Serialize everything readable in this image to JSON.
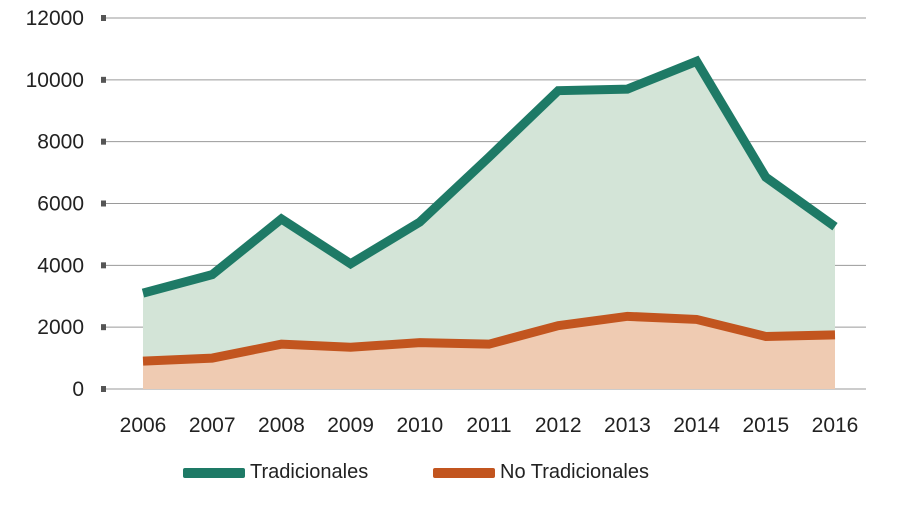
{
  "chart_data": {
    "type": "area",
    "categories": [
      "2006",
      "2007",
      "2008",
      "2009",
      "2010",
      "2011",
      "2012",
      "2013",
      "2014",
      "2015",
      "2016"
    ],
    "ylim": [
      0,
      12000
    ],
    "yticks": [
      0,
      2000,
      4000,
      6000,
      8000,
      10000,
      12000
    ],
    "ytick_labels": [
      "0",
      "2000",
      "4000",
      "6000",
      "8000",
      "10000",
      "12000"
    ],
    "grid": true,
    "legend_position": "bottom",
    "series": [
      {
        "name": "Tradicionales",
        "values": [
          3100,
          3700,
          5500,
          4050,
          5400,
          7500,
          9650,
          9700,
          10600,
          6850,
          5250
        ],
        "line_color": "#1e7a66",
        "fill_color": "#d3e4d7"
      },
      {
        "name": "No Tradicionales",
        "values": [
          900,
          1000,
          1450,
          1350,
          1500,
          1450,
          2050,
          2350,
          2250,
          1700,
          1750
        ],
        "line_color": "#c2551f",
        "fill_color": "#efcbb2"
      }
    ]
  }
}
